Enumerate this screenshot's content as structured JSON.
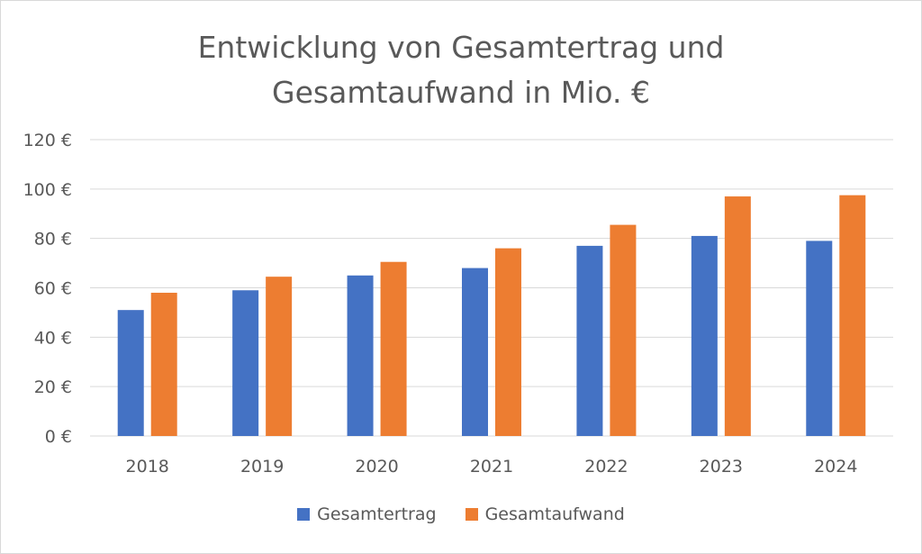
{
  "chart_data": {
    "type": "bar",
    "title_lines": [
      "Entwicklung von Gesamtertrag und",
      "Gesamtaufwand in Mio. €"
    ],
    "categories": [
      "2018",
      "2019",
      "2020",
      "2021",
      "2022",
      "2023",
      "2024"
    ],
    "series": [
      {
        "name": "Gesamtertrag",
        "color": "#4472c4",
        "values": [
          51,
          59,
          65,
          68,
          77,
          81,
          79
        ]
      },
      {
        "name": "Gesamtaufwand",
        "color": "#ed7d31",
        "values": [
          58,
          64.5,
          70.5,
          76,
          85.5,
          97,
          97.5
        ]
      }
    ],
    "ylim": [
      0,
      120
    ],
    "yticks": [
      0,
      20,
      40,
      60,
      80,
      100,
      120
    ],
    "ytick_labels": [
      "0 €",
      "20 €",
      "40 €",
      "60 €",
      "80 €",
      "100 €",
      "120 €"
    ],
    "grid": true,
    "legend_position": "bottom"
  }
}
